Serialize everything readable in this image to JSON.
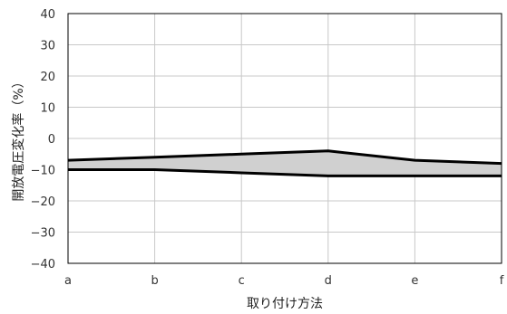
{
  "chart_data": {
    "type": "area",
    "categories": [
      "a",
      "b",
      "c",
      "d",
      "e",
      "f"
    ],
    "series": [
      {
        "values": [
          -7,
          -6,
          -5,
          -4,
          -7,
          -8
        ]
      },
      {
        "values": [
          -10,
          -10,
          -11,
          -12,
          -12,
          -12
        ]
      }
    ],
    "xlabel": "取り付け方法",
    "ylabel": "開放電圧変化率（%）",
    "ylim": [
      -40,
      40
    ],
    "yticks": [
      40,
      30,
      20,
      10,
      0,
      -10,
      -20,
      -30,
      -40
    ],
    "ytick_labels": [
      "40",
      "30",
      "20",
      "10",
      "0",
      "−10",
      "−20",
      "−30",
      "−40"
    ],
    "grid": true,
    "band_fill": "#d0d0d0",
    "line_color": "#000000",
    "grid_color": "#c8c8c8"
  }
}
